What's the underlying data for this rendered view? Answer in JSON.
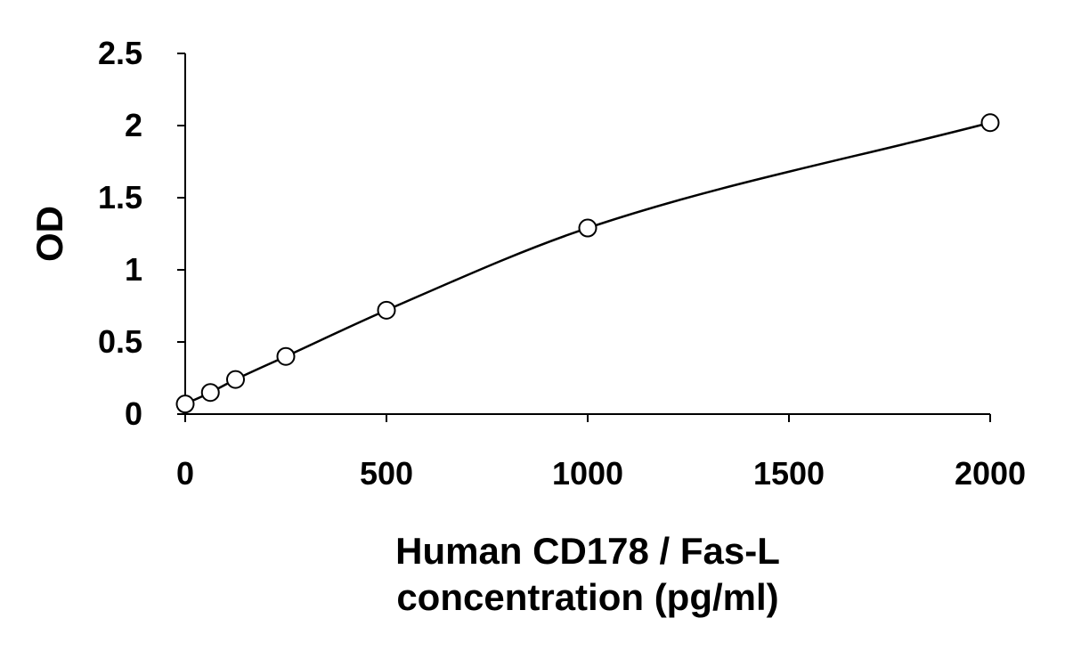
{
  "chart_data": {
    "type": "scatter",
    "title": "",
    "xlabel_lines": [
      "Human CD178 / Fas-L",
      "concentration (pg/ml)"
    ],
    "ylabel": "OD",
    "xlim": [
      0,
      2000
    ],
    "ylim": [
      0,
      2.5
    ],
    "x_ticks": [
      0,
      500,
      1000,
      1500,
      2000
    ],
    "x_tick_labels": [
      "0",
      "500",
      "1000",
      "1500",
      "2000"
    ],
    "y_ticks": [
      0,
      0.5,
      1,
      1.5,
      2,
      2.5
    ],
    "y_tick_labels": [
      "0",
      "0.5",
      "1",
      "1.5",
      "2",
      "2.5"
    ],
    "grid": false,
    "series": [
      {
        "x": [
          0,
          62.5,
          125,
          250,
          500,
          1000,
          2000
        ],
        "y": [
          0.07,
          0.15,
          0.24,
          0.4,
          0.72,
          1.29,
          2.02
        ],
        "marker": "open-circle",
        "fit_line": true
      }
    ],
    "colors": {
      "line": "#000000",
      "marker_stroke": "#000000",
      "marker_fill": "#ffffff"
    }
  }
}
